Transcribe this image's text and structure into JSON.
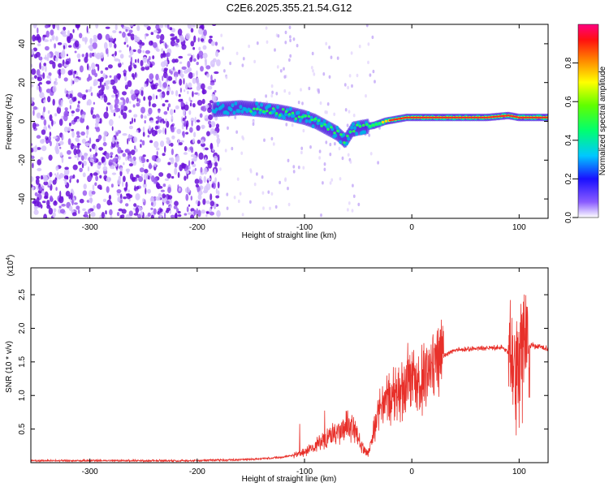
{
  "title": "C2E6.2025.355.21.54.G12",
  "chart_data": [
    {
      "type": "heatmap",
      "xlabel": "Height of straight line (km)",
      "ylabel": "Frequency (Hz)",
      "xlim": [
        -355,
        127
      ],
      "ylim": [
        -50,
        50
      ],
      "x_ticks": [
        -300,
        -200,
        -100,
        0,
        100
      ],
      "y_ticks": [
        -40,
        -20,
        0,
        20,
        40
      ],
      "colorbar": {
        "label": "Normalized spectral amplitude",
        "range": [
          0,
          1
        ],
        "ticks": [
          0.0,
          0.2,
          0.4,
          0.6,
          0.8
        ],
        "tick_labels": [
          "0.0",
          "0.2",
          "0.4",
          "0.6",
          "0.8"
        ]
      },
      "ridge": [
        [
          -185,
          6
        ],
        [
          -160,
          7
        ],
        [
          -140,
          6
        ],
        [
          -125,
          5
        ],
        [
          -115,
          4
        ],
        [
          -100,
          2
        ],
        [
          -90,
          0
        ],
        [
          -80,
          -3
        ],
        [
          -70,
          -6
        ],
        [
          -62,
          -10
        ],
        [
          -55,
          -4
        ],
        [
          -45,
          -3
        ],
        [
          -35,
          -2
        ],
        [
          -25,
          0
        ],
        [
          -15,
          1
        ],
        [
          -5,
          2
        ],
        [
          10,
          2
        ],
        [
          40,
          2
        ],
        [
          70,
          2
        ],
        [
          90,
          3
        ],
        [
          100,
          2
        ],
        [
          127,
          2
        ]
      ]
    },
    {
      "type": "line",
      "xlabel": "Height of straight line (km)",
      "ylabel": "SNR (10 * v/v)",
      "scale_note": "(x10",
      "scale_exp": "4",
      "scale_close": ")",
      "xlim": [
        -355,
        127
      ],
      "ylim": [
        0,
        2.9
      ],
      "x_ticks": [
        -300,
        -200,
        -100,
        0,
        100
      ],
      "y_ticks": [
        0.5,
        1.0,
        1.5,
        2.0,
        2.5
      ],
      "y_tick_labels": [
        "0.5",
        "1.0",
        "1.5",
        "2.0",
        "2.5"
      ],
      "color": "#e8302a",
      "envelope": [
        [
          -355,
          0.03
        ],
        [
          -200,
          0.03
        ],
        [
          -150,
          0.05
        ],
        [
          -120,
          0.08
        ],
        [
          -100,
          0.15
        ],
        [
          -85,
          0.3
        ],
        [
          -70,
          0.45
        ],
        [
          -60,
          0.55
        ],
        [
          -55,
          0.5
        ],
        [
          -50,
          0.35
        ],
        [
          -45,
          0.2
        ],
        [
          -40,
          0.15
        ],
        [
          -35,
          0.5
        ],
        [
          -30,
          0.8
        ],
        [
          -20,
          0.95
        ],
        [
          -10,
          1.05
        ],
        [
          -5,
          1.2
        ],
        [
          0,
          1.35
        ],
        [
          5,
          1.15
        ],
        [
          15,
          1.35
        ],
        [
          25,
          1.55
        ],
        [
          40,
          1.68
        ],
        [
          60,
          1.7
        ],
        [
          85,
          1.72
        ],
        [
          92,
          1.6
        ],
        [
          96,
          1.4
        ],
        [
          98,
          1.2
        ],
        [
          100,
          1.6
        ],
        [
          104,
          2.0
        ],
        [
          106,
          1.85
        ],
        [
          110,
          1.75
        ],
        [
          127,
          1.7
        ]
      ]
    }
  ]
}
